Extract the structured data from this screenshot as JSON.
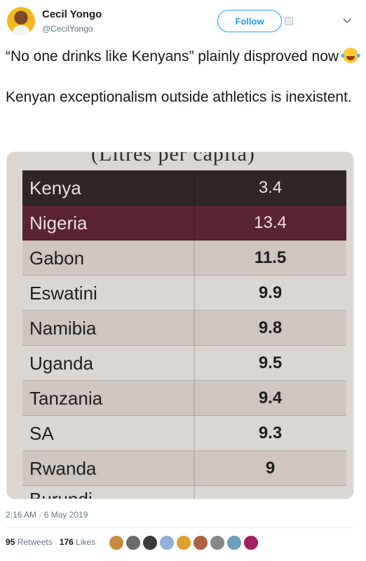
{
  "user": {
    "name": "Cecil Yongo",
    "handle": "@CecilYongo"
  },
  "actions": {
    "follow_label": "Follow"
  },
  "tweet": {
    "line1": "“No one drinks like Kenyans” plainly disproved now ",
    "line2": "Kenyan exceptionalism outside athletics is inexistent.",
    "emoji": "face-with-tears-of-joy"
  },
  "photo": {
    "caption": "(Litres per capita)",
    "rows": [
      {
        "country": "Kenya",
        "value": "3.4"
      },
      {
        "country": "Nigeria",
        "value": "13.4"
      },
      {
        "country": "Gabon",
        "value": "11.5"
      },
      {
        "country": "Eswatini",
        "value": "9.9"
      },
      {
        "country": "Namibia",
        "value": "9.8"
      },
      {
        "country": "Uganda",
        "value": "9.5"
      },
      {
        "country": "Tanzania",
        "value": "9.4"
      },
      {
        "country": "SA",
        "value": "9.3"
      },
      {
        "country": "Rwanda",
        "value": "9"
      }
    ],
    "cut_row": "Burundi"
  },
  "meta": {
    "timestamp": "2:16 AM - 6 May 2019"
  },
  "stats": {
    "retweets_count": "95",
    "retweets_label": "Retweets",
    "likes_count": "176",
    "likes_label": "Likes"
  },
  "colors": {
    "accent": "#1da1f2",
    "kenya_row": "#2f2724",
    "nigeria_row": "#5a2530"
  },
  "liker_colors": [
    "#c98a3c",
    "#6b6b6b",
    "#3a3a3a",
    "#8fb0d8",
    "#e0a030",
    "#b06040",
    "#888888",
    "#6aa0c0",
    "#a02060"
  ]
}
